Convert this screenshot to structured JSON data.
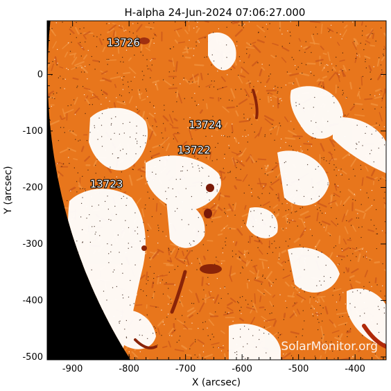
{
  "title": "H-alpha 24-Jun-2024 07:06:27.000",
  "xlabel": "X (arcsec)",
  "ylabel": "Y (arcsec)",
  "x_ticks": [
    "-900",
    "-800",
    "-700",
    "-600",
    "-500",
    "-400"
  ],
  "y_ticks": [
    "0",
    "-100",
    "-200",
    "-300",
    "-400",
    "-500"
  ],
  "xlim": [
    -945,
    -345
  ],
  "ylim": [
    -505,
    95
  ],
  "watermark": "SolarMonitor.org",
  "colors": {
    "disk": "#e8761c",
    "disk_dark": "#b84510",
    "plage": "#ffffff",
    "off_limb": "#000000",
    "sunspot": "#7a1a08"
  },
  "active_regions": [
    {
      "label": "13726",
      "x": -810,
      "y": 50
    },
    {
      "label": "13724",
      "x": -665,
      "y": -95
    },
    {
      "label": "13722",
      "x": -685,
      "y": -140
    },
    {
      "label": "13723",
      "x": -840,
      "y": -200
    }
  ]
}
